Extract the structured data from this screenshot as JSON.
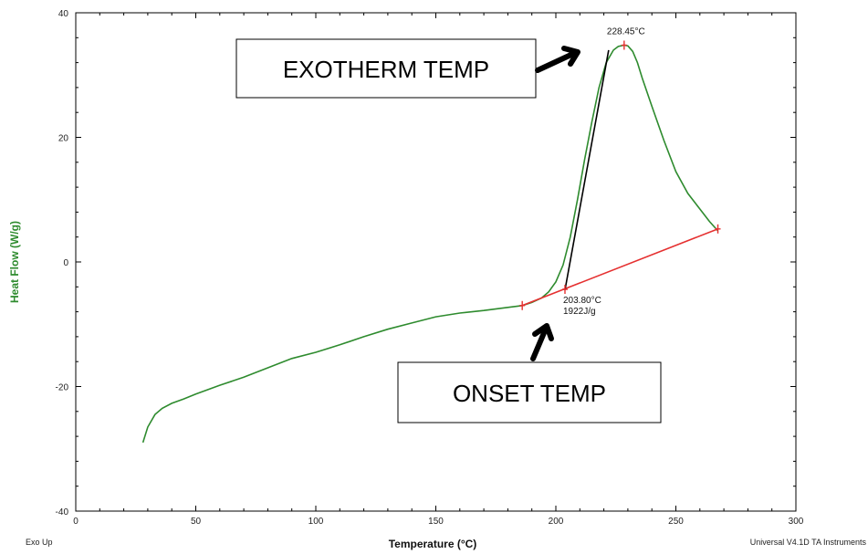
{
  "chart_data": {
    "type": "line",
    "title": "",
    "xlabel": "Temperature (°C)",
    "ylabel": "Heat Flow (W/g)",
    "xlim": [
      0,
      300
    ],
    "ylim": [
      -40,
      40
    ],
    "x_ticks": [
      "0",
      "50",
      "100",
      "150",
      "200",
      "250",
      "300"
    ],
    "y_ticks": [
      "40",
      "20",
      "0",
      "-20",
      "-40"
    ],
    "grid": false,
    "colors": {
      "curve": "#2e8b2e",
      "baseline": "#e53030",
      "tangent": "#000000",
      "axis_title": "#2e8b2e"
    },
    "series": [
      {
        "x": [
          28,
          30,
          33,
          36,
          40,
          45,
          50,
          60,
          70,
          80,
          90,
          100,
          110,
          120,
          130,
          140,
          150,
          160,
          170,
          180,
          186,
          190,
          194,
          197,
          200,
          203,
          206,
          209,
          212,
          215,
          218,
          221,
          224,
          226,
          228.45,
          230,
          232,
          234,
          236,
          240,
          245,
          250,
          255,
          260,
          264,
          267.5
        ],
        "y": [
          -29,
          -26.5,
          -24.5,
          -23.5,
          -22.7,
          -22,
          -21.2,
          -19.8,
          -18.5,
          -17,
          -15.5,
          -14.5,
          -13.3,
          -12,
          -10.8,
          -9.8,
          -8.8,
          -8.2,
          -7.8,
          -7.3,
          -7,
          -6.5,
          -5.8,
          -4.8,
          -3.2,
          -0.5,
          4,
          10,
          16.5,
          22.5,
          28,
          32,
          34,
          34.6,
          34.8,
          34.7,
          33.8,
          32,
          29.5,
          25,
          19.5,
          14.5,
          11,
          8.5,
          6.5,
          5
        ]
      }
    ],
    "baseline": {
      "x": [
        186,
        267.5
      ],
      "y": [
        -7,
        5.3
      ]
    },
    "tangent": {
      "x": [
        203.8,
        222
      ],
      "y": [
        -4.5,
        34
      ]
    },
    "markers": [
      {
        "x": 228.45,
        "y": 34.8
      },
      {
        "x": 203.8,
        "y": -4.4
      },
      {
        "x": 186,
        "y": -7
      },
      {
        "x": 267.5,
        "y": 5.3
      }
    ],
    "annotations": {
      "peak_temp": "228.45°C",
      "onset_temp": "203.80°C",
      "enthalpy": "1922J/g"
    },
    "callouts": {
      "exotherm": "EXOTHERM TEMP",
      "onset": "ONSET TEMP"
    },
    "corner_left": "Exo Up",
    "corner_right": "Universal V4.1D TA Instruments"
  }
}
